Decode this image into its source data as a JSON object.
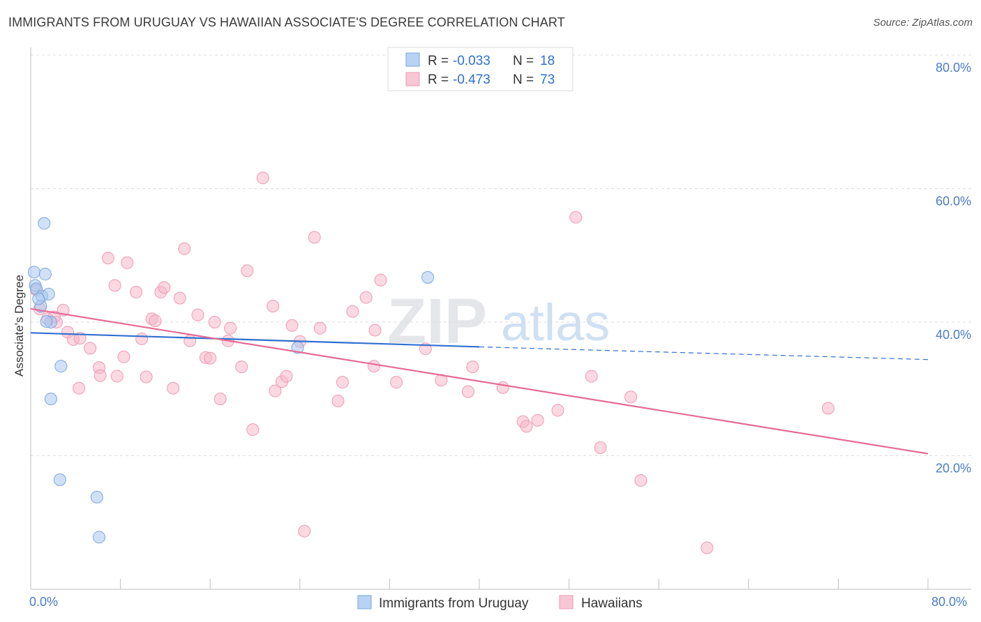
{
  "title": "IMMIGRANTS FROM URUGUAY VS HAWAIIAN ASSOCIATE'S DEGREE CORRELATION CHART",
  "source": "Source: ZipAtlas.com",
  "watermark": {
    "zip": "ZIP",
    "atlas": "atlas"
  },
  "colors": {
    "blue_fill": "#a9c8f0",
    "blue_stroke": "#7aa6de",
    "blue_line": "#2f6fd0",
    "pink_fill": "#f7b8cb",
    "pink_stroke": "#ee9ab5",
    "pink_line": "#e56a95",
    "axis_label": "#4a7cc9",
    "grid": "#dddddd"
  },
  "legend": {
    "rows": [
      {
        "r_label": "R =",
        "r_value": "-0.033",
        "n_label": "N =",
        "n_value": "18",
        "series": "blue"
      },
      {
        "r_label": "R =",
        "r_value": "-0.473",
        "n_label": "N =",
        "n_value": "73",
        "series": "pink"
      }
    ]
  },
  "bottom_legend": [
    "Immigrants from Uruguay",
    "Hawaiians"
  ],
  "chart_data": {
    "type": "scatter",
    "title": "IMMIGRANTS FROM URUGUAY VS HAWAIIAN ASSOCIATE'S DEGREE CORRELATION CHART",
    "xlabel": "",
    "ylabel": "Associate's Degree",
    "xlim": [
      0,
      80
    ],
    "ylim": [
      0,
      80
    ],
    "x_tick_labels": [
      "0.0%",
      "80.0%"
    ],
    "y_tick_labels": [
      "20.0%",
      "40.0%",
      "60.0%",
      "80.0%"
    ],
    "y_ticks": [
      20,
      40,
      60,
      80
    ],
    "series": [
      {
        "name": "Immigrants from Uruguay",
        "color": "blue",
        "r": -0.033,
        "n": 18,
        "points": [
          [
            0.3,
            47.5
          ],
          [
            0.4,
            45.5
          ],
          [
            0.5,
            45.0
          ],
          [
            1.3,
            47.2
          ],
          [
            1.0,
            43.9
          ],
          [
            1.6,
            44.2
          ],
          [
            0.9,
            42.4
          ],
          [
            1.2,
            54.8
          ],
          [
            1.8,
            40.0
          ],
          [
            1.8,
            28.5
          ],
          [
            2.7,
            33.4
          ],
          [
            2.6,
            16.4
          ],
          [
            5.9,
            13.8
          ],
          [
            6.1,
            7.8
          ],
          [
            23.8,
            36.2
          ],
          [
            35.4,
            46.7
          ],
          [
            0.7,
            43.5
          ],
          [
            1.4,
            40.1
          ]
        ],
        "trend": {
          "x0": 0,
          "y0": 38.4,
          "x1": 40,
          "y1": 36.3,
          "dash_to_x": 80,
          "dash_to_y": 34.4
        }
      },
      {
        "name": "Hawaiians",
        "color": "pink",
        "r": -0.473,
        "n": 73,
        "points": [
          [
            0.5,
            44.8
          ],
          [
            0.8,
            42.0
          ],
          [
            1.5,
            40.5
          ],
          [
            2.3,
            40.0
          ],
          [
            2.9,
            41.8
          ],
          [
            3.3,
            38.5
          ],
          [
            3.8,
            37.4
          ],
          [
            4.4,
            37.6
          ],
          [
            5.3,
            36.1
          ],
          [
            4.3,
            30.1
          ],
          [
            6.1,
            33.2
          ],
          [
            6.2,
            32.0
          ],
          [
            6.9,
            49.6
          ],
          [
            7.5,
            45.5
          ],
          [
            7.7,
            31.9
          ],
          [
            8.3,
            34.8
          ],
          [
            8.6,
            48.9
          ],
          [
            9.4,
            44.5
          ],
          [
            9.9,
            37.5
          ],
          [
            10.3,
            31.8
          ],
          [
            10.8,
            40.5
          ],
          [
            11.1,
            40.2
          ],
          [
            11.6,
            44.5
          ],
          [
            11.9,
            45.2
          ],
          [
            12.7,
            30.1
          ],
          [
            13.3,
            43.6
          ],
          [
            13.7,
            51.0
          ],
          [
            14.2,
            37.2
          ],
          [
            14.9,
            41.1
          ],
          [
            15.6,
            34.7
          ],
          [
            16.0,
            34.6
          ],
          [
            16.4,
            40.0
          ],
          [
            16.9,
            28.5
          ],
          [
            17.6,
            37.2
          ],
          [
            17.8,
            39.1
          ],
          [
            18.8,
            33.3
          ],
          [
            19.3,
            47.7
          ],
          [
            19.8,
            23.9
          ],
          [
            20.7,
            61.6
          ],
          [
            21.6,
            42.4
          ],
          [
            21.8,
            29.7
          ],
          [
            22.4,
            31.1
          ],
          [
            22.8,
            31.9
          ],
          [
            23.3,
            39.5
          ],
          [
            24.0,
            37.1
          ],
          [
            24.4,
            8.7
          ],
          [
            25.3,
            52.7
          ],
          [
            25.8,
            39.1
          ],
          [
            27.4,
            28.2
          ],
          [
            27.8,
            31.0
          ],
          [
            28.7,
            41.6
          ],
          [
            29.9,
            43.7
          ],
          [
            30.6,
            33.4
          ],
          [
            30.7,
            38.8
          ],
          [
            31.2,
            46.3
          ],
          [
            32.6,
            31.0
          ],
          [
            35.2,
            36.0
          ],
          [
            36.6,
            31.3
          ],
          [
            39.0,
            29.6
          ],
          [
            39.4,
            33.3
          ],
          [
            42.1,
            30.2
          ],
          [
            43.9,
            25.1
          ],
          [
            44.2,
            24.4
          ],
          [
            45.2,
            25.3
          ],
          [
            47.0,
            26.8
          ],
          [
            48.6,
            55.7
          ],
          [
            50.0,
            31.9
          ],
          [
            50.8,
            21.2
          ],
          [
            53.5,
            28.8
          ],
          [
            54.4,
            16.3
          ],
          [
            60.3,
            6.2
          ],
          [
            71.1,
            27.1
          ],
          [
            2.1,
            40.8
          ]
        ],
        "trend": {
          "x0": 0,
          "y0": 42.0,
          "x1": 80,
          "y1": 20.3
        }
      }
    ]
  }
}
